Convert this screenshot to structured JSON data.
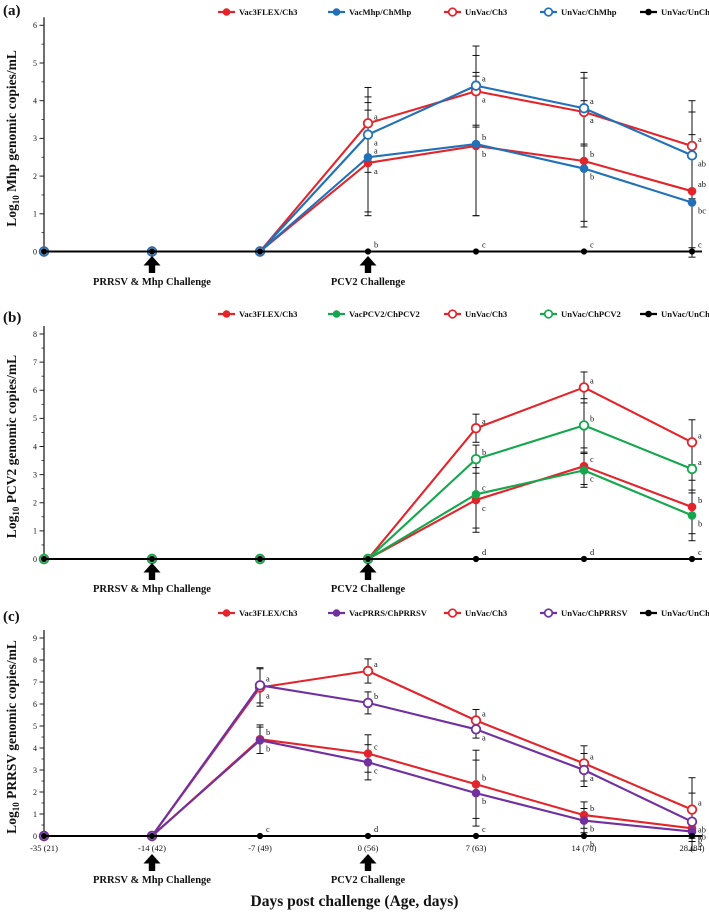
{
  "x_axis_title": "Days post challenge (Age, days)",
  "chart_data": {
    "type": "line",
    "x_categories": [
      "-35 (21)",
      "-14 (42)",
      "-7 (49)",
      "0 (56)",
      "7 (63)",
      "14 (70)",
      "28 (84)"
    ],
    "x_axis_title": "Days post challenge (Age, days)",
    "annotations": [
      {
        "x_index": 1,
        "label": "PRRSV & Mhp Challenge"
      },
      {
        "x_index": 3,
        "label": "PCV2 Challenge"
      }
    ],
    "panels": [
      {
        "panel_label": "(a)",
        "ylabel": "Log10 Mhp genomic copies/mL",
        "ylabel_parts": {
          "prefix": "Log",
          "sub": "10",
          "rest": " Mhp genomic copies/mL"
        },
        "ylim": [
          0,
          6
        ],
        "series": [
          {
            "name": "Vac3FLEX/Ch3",
            "color": "#E3242B",
            "marker": "filled",
            "values": [
              0,
              0,
              0,
              2.35,
              2.8,
              2.4,
              1.6
            ],
            "errors": [
              0,
              0,
              0,
              1.4,
              1.85,
              1.6,
              1.5
            ],
            "sig": [
              "",
              "",
              "",
              "a",
              "b",
              "b",
              "ab"
            ]
          },
          {
            "name": "VacMhp/ChMhp",
            "color": "#2170B8",
            "marker": "filled",
            "values": [
              0,
              0,
              0,
              2.5,
              2.85,
              2.2,
              1.3
            ],
            "errors": [
              0,
              0,
              0,
              1.45,
              1.9,
              1.55,
              1.45
            ],
            "sig": [
              "",
              "",
              "",
              "a",
              "b",
              "b",
              "bc"
            ]
          },
          {
            "name": "UnVac/Ch3",
            "color": "#E3242B",
            "marker": "open",
            "values": [
              0,
              0,
              0,
              3.4,
              4.25,
              3.7,
              2.8
            ],
            "errors": [
              0,
              0,
              0,
              0.95,
              0.95,
              0.9,
              1.2
            ],
            "sig": [
              "",
              "",
              "",
              "a",
              "a",
              "a",
              "a"
            ]
          },
          {
            "name": "UnVac/ChMhp",
            "color": "#2170B8",
            "marker": "open",
            "values": [
              0,
              0,
              0,
              3.1,
              4.4,
              3.8,
              2.55
            ],
            "errors": [
              0,
              0,
              0,
              1.0,
              1.05,
              0.95,
              1.15
            ],
            "sig": [
              "",
              "",
              "",
              "a",
              "a",
              "a",
              "ab"
            ]
          },
          {
            "name": "UnVac/UnCh",
            "color": "#000000",
            "marker": "dot",
            "values": [
              0,
              0,
              0,
              0,
              0,
              0,
              0
            ],
            "errors": [
              0,
              0,
              0,
              0,
              0,
              0,
              0
            ],
            "sig": [
              "",
              "",
              "",
              "b",
              "c",
              "c",
              "c"
            ]
          }
        ]
      },
      {
        "panel_label": "(b)",
        "ylabel": "Log10 PCV2 genomic copies/mL",
        "ylabel_parts": {
          "prefix": "Log",
          "sub": "10",
          "rest": " PCV2 genomic copies/mL"
        },
        "ylim": [
          0,
          8
        ],
        "series": [
          {
            "name": "Vac3FLEX/Ch3",
            "color": "#E3242B",
            "marker": "filled",
            "values": [
              0,
              0,
              0,
              0,
              2.1,
              3.3,
              1.85
            ],
            "errors": [
              0,
              0,
              0,
              0,
              1.15,
              0.65,
              0.95
            ],
            "sig": [
              "",
              "",
              "",
              "",
              "c",
              "c",
              "b"
            ]
          },
          {
            "name": "VacPCV2/ChPCV2",
            "color": "#15A74D",
            "marker": "filled",
            "values": [
              0,
              0,
              0,
              0,
              2.3,
              3.15,
              1.55
            ],
            "errors": [
              0,
              0,
              0,
              0,
              1.2,
              0.6,
              0.9
            ],
            "sig": [
              "",
              "",
              "",
              "",
              "c",
              "c",
              "b"
            ]
          },
          {
            "name": "UnVac/Ch3",
            "color": "#E3242B",
            "marker": "open",
            "values": [
              0,
              0,
              0,
              0,
              4.65,
              6.1,
              4.15
            ],
            "errors": [
              0,
              0,
              0,
              0,
              0.5,
              0.55,
              0.8
            ],
            "sig": [
              "",
              "",
              "",
              "",
              "a",
              "a",
              "a"
            ]
          },
          {
            "name": "UnVac/ChPCV2",
            "color": "#15A74D",
            "marker": "open",
            "values": [
              0,
              0,
              0,
              0,
              3.55,
              4.75,
              3.2
            ],
            "errors": [
              0,
              0,
              0,
              0,
              0.5,
              0.95,
              0.85
            ],
            "sig": [
              "",
              "",
              "",
              "",
              "b",
              "b",
              "a"
            ]
          },
          {
            "name": "UnVac/UnCh",
            "color": "#000000",
            "marker": "dot",
            "values": [
              0,
              0,
              0,
              0,
              0,
              0,
              0
            ],
            "errors": [
              0,
              0,
              0,
              0,
              0,
              0,
              0
            ],
            "sig": [
              "",
              "",
              "",
              "",
              "d",
              "d",
              "c"
            ]
          }
        ]
      },
      {
        "panel_label": "(c)",
        "ylabel": "Log10 PRRSV genomic copies/mL",
        "ylabel_parts": {
          "prefix": "Log",
          "sub": "10",
          "rest": " PRRSV genomic copies/mL"
        },
        "ylim": [
          0,
          9
        ],
        "series": [
          {
            "name": "Vac3FLEX/Ch3",
            "color": "#E3242B",
            "marker": "filled",
            "values": [
              0,
              0,
              4.4,
              3.75,
              2.35,
              0.95,
              0.35
            ],
            "errors": [
              0,
              0,
              0.65,
              0.85,
              1.55,
              0.6,
              0.35
            ],
            "sig": [
              "",
              "",
              "b",
              "c",
              "b",
              "b",
              "ab"
            ]
          },
          {
            "name": "VacPRRS/ChPRRSV",
            "color": "#7030A0",
            "marker": "filled",
            "values": [
              0,
              0,
              4.35,
              3.35,
              1.95,
              0.7,
              0.2
            ],
            "errors": [
              0,
              0,
              0.6,
              0.8,
              1.5,
              0.55,
              0.3
            ],
            "sig": [
              "",
              "",
              "b",
              "c",
              "b",
              "b",
              "b"
            ]
          },
          {
            "name": "UnVac/Ch3",
            "color": "#E3242B",
            "marker": "open",
            "values": [
              0,
              0,
              6.75,
              7.5,
              5.25,
              3.3,
              1.2
            ],
            "errors": [
              0,
              0,
              0.85,
              0.55,
              0.5,
              0.8,
              1.45
            ],
            "sig": [
              "",
              "",
              "a",
              "a",
              "a",
              "a",
              "a"
            ]
          },
          {
            "name": "UnVac/ChPRRSV",
            "color": "#7030A0",
            "marker": "open",
            "values": [
              0,
              0,
              6.85,
              6.05,
              4.85,
              3.0,
              0.65
            ],
            "errors": [
              0,
              0,
              0.8,
              0.5,
              0.4,
              0.75,
              1.3
            ],
            "sig": [
              "",
              "",
              "a",
              "b",
              "a",
              "a",
              "ab"
            ]
          },
          {
            "name": "UnVac/UnCh",
            "color": "#000000",
            "marker": "dot",
            "values": [
              0,
              0,
              0,
              0,
              0,
              0,
              0
            ],
            "errors": [
              0,
              0,
              0,
              0,
              0,
              0,
              0
            ],
            "sig": [
              "",
              "",
              "c",
              "d",
              "c",
              "b",
              "b"
            ]
          }
        ]
      }
    ]
  }
}
